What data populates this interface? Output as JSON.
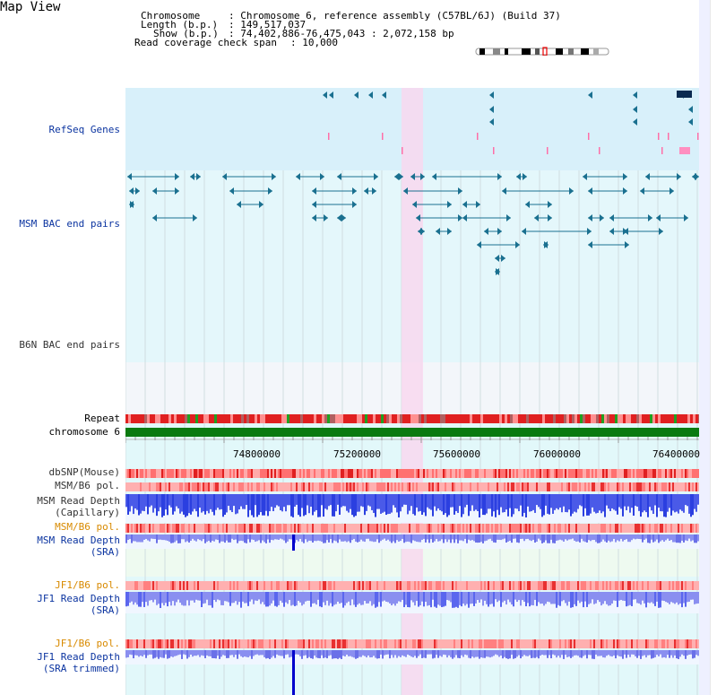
{
  "title": "Map View",
  "header": {
    "chromosome_label": "Chromosome",
    "chromosome_value": ": Chromosome 6, reference assembly (C57BL/6J) (Build 37)",
    "length_label": "Length (b.p.)",
    "length_value": ": 149,517,037",
    "show_label": "Show (b.p.)",
    "show_value": ": 74,402,886-76,475,043 : 2,072,158 bp",
    "coverage_label": "Read coverage check span",
    "coverage_value": ": 10,000"
  },
  "tracks": {
    "refseq": "RefSeq Genes",
    "msm_bac": "MSM BAC end pairs",
    "b6n_bac": "B6N BAC end pairs",
    "repeat": "Repeat",
    "chromosome": "chromosome 6",
    "dbsnp": "dbSNP(Mouse)",
    "msm_b6_pol_1": "MSM/B6 pol.",
    "msm_read_depth_cap_1": "MSM Read Depth",
    "msm_read_depth_cap_2": "(Capillary)",
    "msm_b6_pol_2": "MSM/B6 pol.",
    "msm_read_depth_sra_1": "MSM Read Depth",
    "msm_read_depth_sra_2": "(SRA)",
    "jf1_b6_pol_1": "JF1/B6 pol.",
    "jf1_read_depth_sra_1": "JF1 Read Depth",
    "jf1_read_depth_sra_2": "(SRA)",
    "jf1_b6_pol_2": "JF1/B6 pol.",
    "jf1_read_depth_trim_1": "JF1 Read Depth",
    "jf1_read_depth_trim_2": "(SRA trimmed)"
  },
  "axis": {
    "ticks": [
      "74800000",
      "75200000",
      "75600000",
      "76000000",
      "76400000"
    ]
  },
  "colors": {
    "refseq_bg": "#d8f0fa",
    "msm_bac_bg": "#e4f7fb",
    "b6n_bac_bg": "#f3f6fa",
    "lower_bg": "#e2f8fa",
    "highlight": "#f8d8ef",
    "msm_bac_feature": "#1a7090",
    "b6n_bac_feature": "#606060",
    "chromosome_bar": "#0a7a10",
    "depth_dark": "#2b3fe0",
    "depth_light": "#8a8ff0"
  }
}
